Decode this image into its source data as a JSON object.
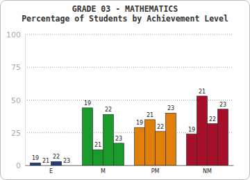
{
  "chart_data": {
    "type": "bar",
    "title": "GRADE 03 - MATHEMATICS",
    "subtitle": "Percentage of Students by Achievement Level",
    "categories": [
      "E",
      "M",
      "PM",
      "NM"
    ],
    "series": [
      {
        "name": "19",
        "colors": [
          "#1f3f7f",
          "#1a9a2a",
          "#e07f0a",
          "#a6102a"
        ],
        "values": [
          2,
          44,
          29,
          24
        ]
      },
      {
        "name": "21",
        "colors": [
          "#1f3f7f",
          "#1a9a2a",
          "#e07f0a",
          "#a6102a"
        ],
        "values": [
          0,
          12,
          35,
          53
        ]
      },
      {
        "name": "22",
        "colors": [
          "#1f3f7f",
          "#1a9a2a",
          "#e07f0a",
          "#a6102a"
        ],
        "values": [
          3,
          39,
          26,
          32
        ]
      },
      {
        "name": "23",
        "colors": [
          "#1f3f7f",
          "#1a9a2a",
          "#e07f0a",
          "#a6102a"
        ],
        "values": [
          0,
          17,
          40,
          43
        ]
      }
    ],
    "ylim": [
      0,
      100
    ],
    "yticks": [
      0,
      25,
      50,
      75,
      100
    ],
    "grid": true
  }
}
